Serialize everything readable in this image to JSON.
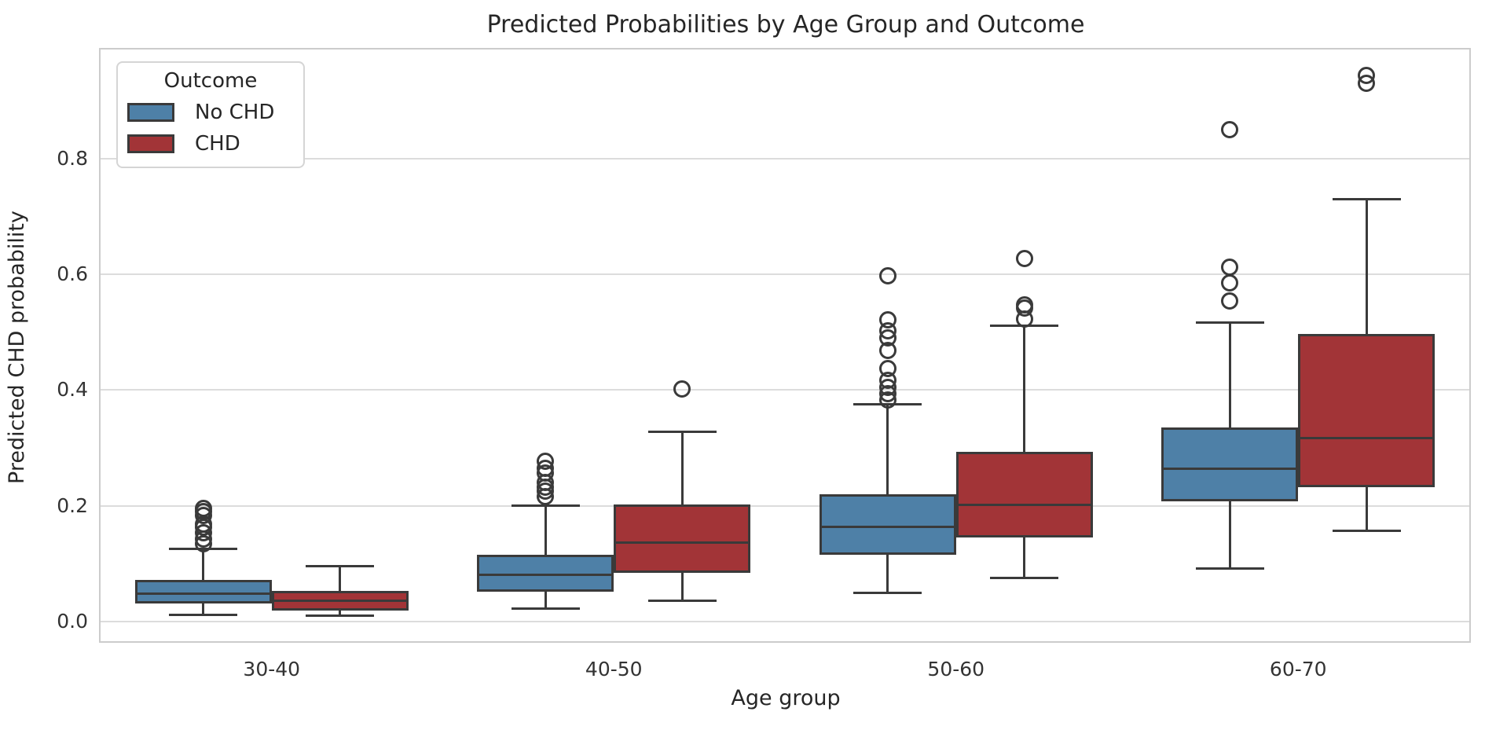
{
  "chart": {
    "title": "Predicted Probabilities by Age Group and Outcome",
    "xlabel": "Age group",
    "ylabel": "Predicted CHD probability",
    "legend": {
      "title": "Outcome",
      "entries": [
        {
          "label": "No CHD",
          "color": "#4E80A7"
        },
        {
          "label": "CHD",
          "color": "#A23437"
        }
      ]
    },
    "yticks": [
      {
        "value": 0.0,
        "label": "0.0"
      },
      {
        "value": 0.2,
        "label": "0.2"
      },
      {
        "value": 0.4,
        "label": "0.4"
      },
      {
        "value": 0.6,
        "label": "0.6"
      },
      {
        "value": 0.8,
        "label": "0.8"
      }
    ]
  },
  "chart_data": {
    "type": "boxplot",
    "title": "Predicted Probabilities by Age Group and Outcome",
    "xlabel": "Age group",
    "ylabel": "Predicted CHD probability",
    "categories": [
      "30-40",
      "40-50",
      "50-60",
      "60-70"
    ],
    "ylim": [
      -0.034,
      0.988
    ],
    "yticks": [
      0.0,
      0.2,
      0.4,
      0.6,
      0.8
    ],
    "grid": true,
    "legend_position": "upper left",
    "colors": {
      "box_edge": "#3a3a3a",
      "gridline": "#dcdcdc",
      "axes_border": "#cccccc"
    },
    "series": [
      {
        "name": "No CHD",
        "color": "#4E80A7",
        "boxes": [
          {
            "category": "30-40",
            "whisker_low": 0.012,
            "q1": 0.031,
            "median": 0.048,
            "q3": 0.072,
            "whisker_high": 0.126,
            "outliers": [
              0.134,
              0.143,
              0.153,
              0.163,
              0.168,
              0.183,
              0.19,
              0.196
            ]
          },
          {
            "category": "40-50",
            "whisker_low": 0.022,
            "q1": 0.052,
            "median": 0.081,
            "q3": 0.115,
            "whisker_high": 0.2,
            "outliers": [
              0.216,
              0.225,
              0.232,
              0.24,
              0.256,
              0.265,
              0.277
            ]
          },
          {
            "category": "50-60",
            "whisker_low": 0.05,
            "q1": 0.115,
            "median": 0.163,
            "q3": 0.22,
            "whisker_high": 0.375,
            "outliers": [
              0.382,
              0.394,
              0.405,
              0.416,
              0.437,
              0.468,
              0.49,
              0.502,
              0.521,
              0.597
            ]
          },
          {
            "category": "60-70",
            "whisker_low": 0.091,
            "q1": 0.207,
            "median": 0.264,
            "q3": 0.335,
            "whisker_high": 0.516,
            "outliers": [
              0.554,
              0.585,
              0.612,
              0.849
            ]
          }
        ]
      },
      {
        "name": "CHD",
        "color": "#A23437",
        "boxes": [
          {
            "category": "30-40",
            "whisker_low": 0.01,
            "q1": 0.019,
            "median": 0.036,
            "q3": 0.053,
            "whisker_high": 0.095,
            "outliers": []
          },
          {
            "category": "40-50",
            "whisker_low": 0.036,
            "q1": 0.084,
            "median": 0.136,
            "q3": 0.202,
            "whisker_high": 0.328,
            "outliers": [
              0.402
            ]
          },
          {
            "category": "50-60",
            "whisker_low": 0.075,
            "q1": 0.145,
            "median": 0.201,
            "q3": 0.293,
            "whisker_high": 0.511,
            "outliers": [
              0.522,
              0.542,
              0.547,
              0.627
            ]
          },
          {
            "category": "60-70",
            "whisker_low": 0.157,
            "q1": 0.232,
            "median": 0.317,
            "q3": 0.497,
            "whisker_high": 0.729,
            "outliers": [
              0.93,
              0.943
            ]
          }
        ]
      }
    ]
  }
}
